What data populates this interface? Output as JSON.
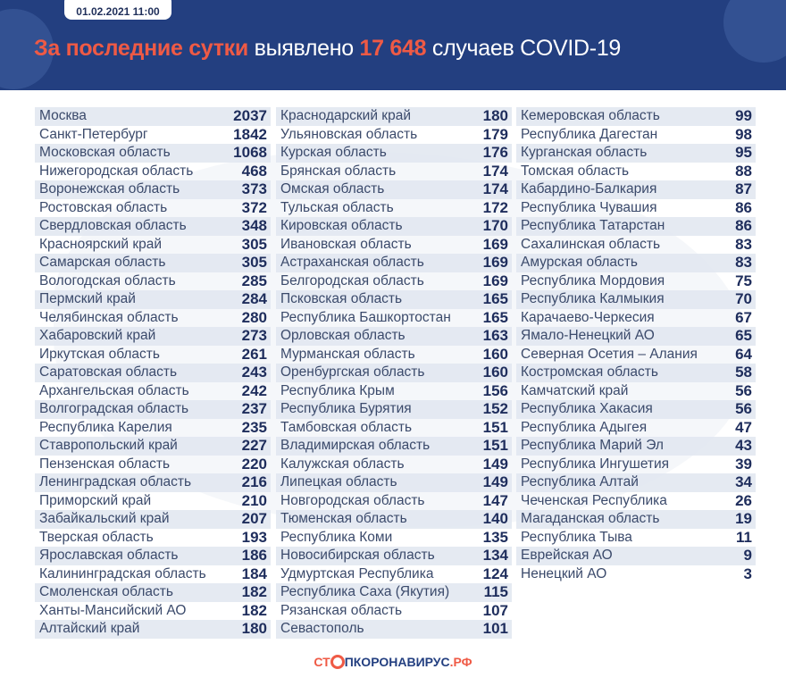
{
  "header": {
    "date": "01.02.2021 11:00",
    "title_accent": "За последние сутки",
    "title_mid": "выявлено",
    "total": "17 648",
    "title_end": "случаев COVID-19"
  },
  "columns": [
    [
      [
        "Москва",
        "2037"
      ],
      [
        "Санкт-Петербург",
        "1842"
      ],
      [
        "Московская область",
        "1068"
      ],
      [
        "Нижегородская область",
        "468"
      ],
      [
        "Воронежская область",
        "373"
      ],
      [
        "Ростовская область",
        "372"
      ],
      [
        "Свердловская область",
        "348"
      ],
      [
        "Красноярский край",
        "305"
      ],
      [
        "Самарская область",
        "305"
      ],
      [
        "Вологодская область",
        "285"
      ],
      [
        "Пермский край",
        "284"
      ],
      [
        "Челябинская область",
        "280"
      ],
      [
        "Хабаровский край",
        "273"
      ],
      [
        "Иркутская область",
        "261"
      ],
      [
        "Саратовская область",
        "243"
      ],
      [
        "Архангельская область",
        "242"
      ],
      [
        "Волгоградская область",
        "237"
      ],
      [
        "Республика Карелия",
        "235"
      ],
      [
        "Ставропольский край",
        "227"
      ],
      [
        "Пензенская область",
        "220"
      ],
      [
        "Ленинградская область",
        "216"
      ],
      [
        "Приморский край",
        "210"
      ],
      [
        "Забайкальский край",
        "207"
      ],
      [
        "Тверская область",
        "193"
      ],
      [
        "Ярославская область",
        "186"
      ],
      [
        "Калининградская область",
        "184"
      ],
      [
        "Смоленская область",
        "182"
      ],
      [
        "Ханты-Мансийский АО",
        "182"
      ],
      [
        "Алтайский край",
        "180"
      ]
    ],
    [
      [
        "Краснодарский край",
        "180"
      ],
      [
        "Ульяновская область",
        "179"
      ],
      [
        "Курская область",
        "176"
      ],
      [
        "Брянская область",
        "174"
      ],
      [
        "Омская область",
        "174"
      ],
      [
        "Тульская область",
        "172"
      ],
      [
        "Кировская область",
        "170"
      ],
      [
        "Ивановская область",
        "169"
      ],
      [
        "Астраханская область",
        "169"
      ],
      [
        "Белгородская область",
        "169"
      ],
      [
        "Псковская область",
        "165"
      ],
      [
        "Республика Башкортостан",
        "165"
      ],
      [
        "Орловская область",
        "163"
      ],
      [
        "Мурманская область",
        "160"
      ],
      [
        "Оренбургская область",
        "160"
      ],
      [
        "Республика Крым",
        "156"
      ],
      [
        "Республика Бурятия",
        "152"
      ],
      [
        "Тамбовская область",
        "151"
      ],
      [
        "Владимирская область",
        "151"
      ],
      [
        "Калужская область",
        "149"
      ],
      [
        "Липецкая область",
        "149"
      ],
      [
        "Новгородская область",
        "147"
      ],
      [
        "Тюменская область",
        "140"
      ],
      [
        "Республика Коми",
        "135"
      ],
      [
        "Новосибирская область",
        "134"
      ],
      [
        "Удмуртская Республика",
        "124"
      ],
      [
        "Республика Саха (Якутия)",
        "115"
      ],
      [
        "Рязанская область",
        "107"
      ],
      [
        "Севастополь",
        "101"
      ]
    ],
    [
      [
        "Кемеровская область",
        "99"
      ],
      [
        "Республика Дагестан",
        "98"
      ],
      [
        "Курганская область",
        "95"
      ],
      [
        "Томская область",
        "88"
      ],
      [
        "Кабардино-Балкария",
        "87"
      ],
      [
        "Республика Чувашия",
        "86"
      ],
      [
        "Республика Татарстан",
        "86"
      ],
      [
        "Сахалинская область",
        "83"
      ],
      [
        "Амурская область",
        "83"
      ],
      [
        "Республика Мордовия",
        "75"
      ],
      [
        "Республика Калмыкия",
        "70"
      ],
      [
        "Карачаево-Черкесия",
        "67"
      ],
      [
        "Ямало-Ненецкий АО",
        "65"
      ],
      [
        "Северная Осетия – Алания",
        "64"
      ],
      [
        "Костромская область",
        "58"
      ],
      [
        "Камчатский край",
        "56"
      ],
      [
        "Республика Хакасия",
        "56"
      ],
      [
        "Республика Адыгея",
        "47"
      ],
      [
        "Республика Марий Эл",
        "43"
      ],
      [
        "Республика Ингушетия",
        "39"
      ],
      [
        "Республика Алтай",
        "34"
      ],
      [
        "Чеченская Республика",
        "26"
      ],
      [
        "Магаданская область",
        "19"
      ],
      [
        "Республика Тыва",
        "11"
      ],
      [
        "Еврейская АО",
        "9"
      ],
      [
        "Ненецкий АО",
        "3"
      ]
    ]
  ],
  "footer": {
    "part1": "СТ",
    "part2": "ПКОРОНАВИРУС",
    "part3": ".РФ"
  },
  "colors": {
    "header_bg": "#233f80",
    "accent": "#ef5a45",
    "value": "#1e2d5c"
  }
}
